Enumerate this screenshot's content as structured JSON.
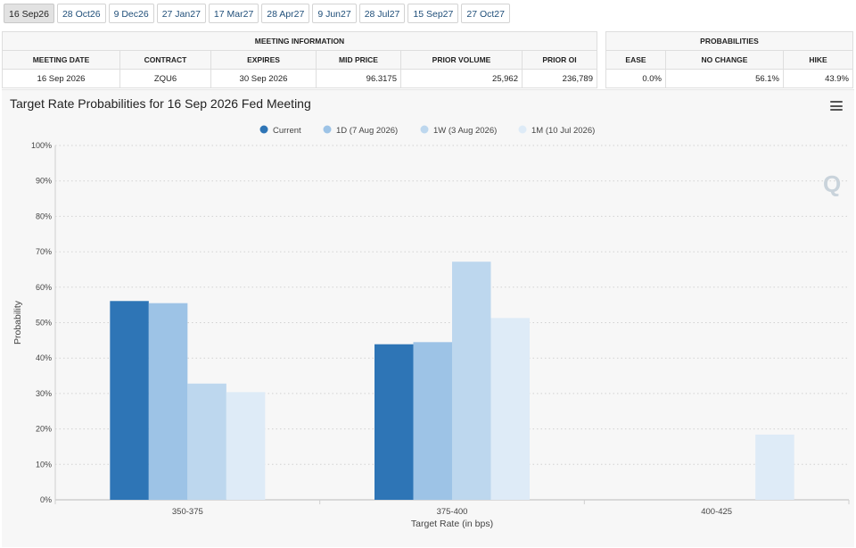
{
  "tabs": [
    "16 Sep26",
    "28 Oct26",
    "9 Dec26",
    "27 Jan27",
    "17 Mar27",
    "28 Apr27",
    "9 Jun27",
    "28 Jul27",
    "15 Sep27",
    "27 Oct27"
  ],
  "active_tab": 0,
  "meeting_info": {
    "header": "MEETING INFORMATION",
    "columns": [
      "MEETING DATE",
      "CONTRACT",
      "EXPIRES",
      "MID PRICE",
      "PRIOR VOLUME",
      "PRIOR OI"
    ],
    "row": [
      "16 Sep 2026",
      "ZQU6",
      "30 Sep 2026",
      "96.3175",
      "25,962",
      "236,789"
    ]
  },
  "probabilities": {
    "header": "PROBABILITIES",
    "columns": [
      "EASE",
      "NO CHANGE",
      "HIKE"
    ],
    "row": [
      "0.0%",
      "56.1%",
      "43.9%"
    ]
  },
  "colors": {
    "current": "#2e75b6",
    "d1": "#9dc3e6",
    "w1": "#bdd7ee",
    "m1": "#deebf7"
  },
  "chart_data": {
    "type": "bar",
    "title": "Target Rate Probabilities for 16 Sep 2026 Fed Meeting",
    "xlabel": "Target Rate (in bps)",
    "ylabel": "Probability",
    "categories": [
      "350-375",
      "375-400",
      "400-425"
    ],
    "ylim": [
      0,
      100
    ],
    "yticks": [
      "0%",
      "10%",
      "20%",
      "30%",
      "40%",
      "50%",
      "60%",
      "70%",
      "80%",
      "90%",
      "100%"
    ],
    "legend_position": "top-center",
    "grid": true,
    "series": [
      {
        "name": "Current",
        "values": [
          56.1,
          43.9,
          0
        ]
      },
      {
        "name": "1D (7 Aug 2026)",
        "values": [
          55.5,
          44.5,
          0
        ]
      },
      {
        "name": "1W (3 Aug 2026)",
        "values": [
          32.8,
          67.2,
          0
        ]
      },
      {
        "name": "1M (10 Jul 2026)",
        "values": [
          30.4,
          51.3,
          18.4
        ]
      }
    ]
  }
}
